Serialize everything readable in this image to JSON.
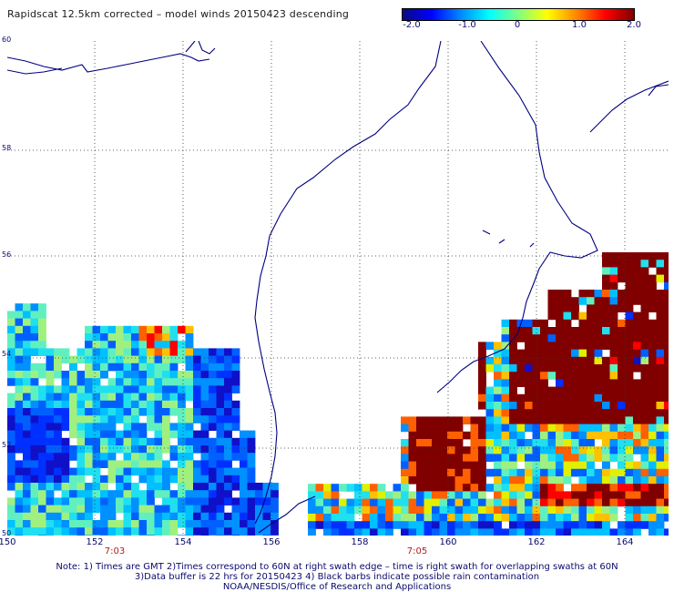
{
  "title": "Rapidscat 12.5km corrected – model winds 20150423 descending",
  "colorbar": {
    "labels": [
      "-2.0",
      "-1.0",
      "0",
      "1.0",
      "2.0"
    ],
    "values": [
      -2.0,
      -1.0,
      0,
      1.0,
      2.0
    ],
    "range": [
      -2.0,
      2.0
    ],
    "colors": [
      "#0a0a80",
      "#0000ff",
      "#0088ff",
      "#00ffff",
      "#80ff80",
      "#ffff00",
      "#ff8800",
      "#ff0000",
      "#800000"
    ]
  },
  "map": {
    "lon_range": [
      150,
      165
    ],
    "lat_range": [
      50,
      60
    ],
    "lon_ticks": [
      "150",
      "152",
      "154",
      "156",
      "158",
      "160",
      "162",
      "164"
    ],
    "lat_ticks": [
      "60",
      "58",
      "56",
      "54",
      "52",
      "50"
    ],
    "times": [
      "7:03",
      "7:05"
    ],
    "grid": true,
    "coastline_color": "#000080"
  },
  "notes": [
    "Note: 1) Times are GMT 2)Times correspond to 60N at right swath edge – time is right swath for overlapping swaths at 60N",
    "3)Data buffer is 22 hrs for 20150423 4) Black barbs indicate possible rain contamination",
    "NOAA/NESDIS/Office of Research and Applications"
  ]
}
